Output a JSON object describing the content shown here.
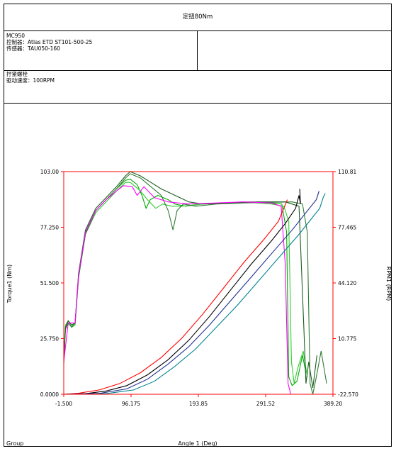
{
  "header": {
    "title": "定扭80Nm",
    "model": "MC950",
    "controller": "控制器：Atlas ETD ST101-500-25",
    "sensor": "传感器：TAU050-160",
    "operation": "拧紧螺栓",
    "speed": "驱动速度：100RPM"
  },
  "footer": {
    "group_label": "Group"
  },
  "colors": {
    "axis_red": "#ff0000",
    "series": [
      "#00aa00",
      "#33cc33",
      "#2e7d32",
      "#1b5e20",
      "#ff00ff",
      "#ff0000",
      "#000000",
      "#00838f",
      "#1f2f8f"
    ]
  },
  "chart_data": {
    "type": "line",
    "title": "",
    "xlabel": "Angle 1 (Deg)",
    "ylabel": "Torque1 (Nm)",
    "y2label": "RPM1 (RPM)",
    "xlim": [
      -1.5,
      389.2
    ],
    "ylim": [
      0,
      103
    ],
    "y2lim": [
      -22.57,
      110.81
    ],
    "xticks": [
      "-1.500",
      "96.175",
      "193.85",
      "291.52",
      "389.20"
    ],
    "yticks": [
      "0.0000",
      "25.750",
      "51.500",
      "77.250",
      "103.00"
    ],
    "y2ticks": [
      "-22.570",
      "10.775",
      "44.120",
      "77.465",
      "110.81"
    ],
    "grid": false,
    "series": [
      {
        "color": "#00aa00",
        "points": [
          [
            -1.5,
            15
          ],
          [
            1,
            31
          ],
          [
            5,
            33
          ],
          [
            10,
            31
          ],
          [
            15,
            33
          ],
          [
            20,
            55
          ],
          [
            30,
            75
          ],
          [
            45,
            85
          ],
          [
            60,
            90
          ],
          [
            75,
            95
          ],
          [
            88,
            99
          ],
          [
            95,
            99.5
          ],
          [
            105,
            97
          ],
          [
            112,
            92
          ],
          [
            118,
            86
          ],
          [
            124,
            90
          ],
          [
            135,
            92
          ],
          [
            150,
            90
          ],
          [
            160,
            88
          ],
          [
            175,
            87
          ],
          [
            200,
            88
          ],
          [
            230,
            88.5
          ],
          [
            270,
            89
          ],
          [
            300,
            88.5
          ],
          [
            315,
            88
          ],
          [
            322,
            75
          ],
          [
            325,
            8
          ],
          [
            330,
            4
          ],
          [
            337,
            6
          ],
          [
            345,
            18
          ],
          [
            350,
            10
          ]
        ]
      },
      {
        "color": "#33cc33",
        "points": [
          [
            -1.5,
            16
          ],
          [
            1,
            32
          ],
          [
            5,
            34
          ],
          [
            10,
            31
          ],
          [
            15,
            32
          ],
          [
            20,
            54
          ],
          [
            30,
            74
          ],
          [
            45,
            84
          ],
          [
            60,
            89
          ],
          [
            75,
            94
          ],
          [
            88,
            98
          ],
          [
            95,
            98
          ],
          [
            110,
            94
          ],
          [
            120,
            90
          ],
          [
            132,
            86
          ],
          [
            142,
            88
          ],
          [
            155,
            87
          ],
          [
            170,
            87
          ],
          [
            200,
            88
          ],
          [
            230,
            88.5
          ],
          [
            270,
            88.7
          ],
          [
            300,
            88
          ],
          [
            318,
            87
          ],
          [
            325,
            80
          ],
          [
            329,
            15
          ],
          [
            333,
            5
          ],
          [
            338,
            12
          ],
          [
            346,
            20
          ],
          [
            352,
            8
          ]
        ]
      },
      {
        "color": "#2e7d32",
        "points": [
          [
            -1.5,
            14
          ],
          [
            1,
            30
          ],
          [
            5,
            33
          ],
          [
            10,
            31
          ],
          [
            15,
            33
          ],
          [
            20,
            54
          ],
          [
            30,
            74
          ],
          [
            45,
            85
          ],
          [
            60,
            90
          ],
          [
            75,
            95
          ],
          [
            88,
            100
          ],
          [
            95,
            102
          ],
          [
            110,
            100
          ],
          [
            125,
            96
          ],
          [
            140,
            92
          ],
          [
            150,
            85
          ],
          [
            157,
            76
          ],
          [
            163,
            85
          ],
          [
            172,
            88
          ],
          [
            190,
            87
          ],
          [
            220,
            88
          ],
          [
            260,
            88.5
          ],
          [
            300,
            88.8
          ],
          [
            330,
            89
          ],
          [
            345,
            88
          ],
          [
            352,
            75
          ],
          [
            356,
            5
          ],
          [
            360,
            0
          ],
          [
            365,
            8
          ],
          [
            372,
            20
          ],
          [
            380,
            5
          ]
        ]
      },
      {
        "color": "#1b5e20",
        "points": [
          [
            -1.5,
            16
          ],
          [
            1,
            31
          ],
          [
            5,
            34
          ],
          [
            10,
            32
          ],
          [
            15,
            33
          ],
          [
            20,
            56
          ],
          [
            30,
            76
          ],
          [
            45,
            86
          ],
          [
            60,
            91
          ],
          [
            75,
            96
          ],
          [
            88,
            101
          ],
          [
            95,
            103
          ],
          [
            110,
            101
          ],
          [
            125,
            98
          ],
          [
            140,
            95
          ],
          [
            160,
            92
          ],
          [
            180,
            89
          ],
          [
            200,
            88
          ],
          [
            240,
            88.5
          ],
          [
            280,
            89
          ],
          [
            320,
            89
          ],
          [
            340,
            87
          ],
          [
            347,
            30
          ],
          [
            350,
            5
          ],
          [
            354,
            15
          ],
          [
            360,
            3
          ],
          [
            366,
            18
          ]
        ]
      },
      {
        "color": "#ff00ff",
        "points": [
          [
            -1.5,
            15
          ],
          [
            5,
            33
          ],
          [
            15,
            33
          ],
          [
            20,
            55
          ],
          [
            30,
            75
          ],
          [
            45,
            85
          ],
          [
            60,
            90
          ],
          [
            75,
            94
          ],
          [
            85,
            96.5
          ],
          [
            98,
            96
          ],
          [
            105,
            92
          ],
          [
            115,
            96
          ],
          [
            130,
            91
          ],
          [
            150,
            89
          ],
          [
            180,
            88
          ],
          [
            220,
            88.5
          ],
          [
            260,
            89
          ],
          [
            300,
            88.5
          ],
          [
            314,
            87
          ],
          [
            320,
            60
          ],
          [
            324,
            5
          ],
          [
            328,
            0
          ]
        ]
      },
      {
        "color": "#ff0000",
        "points": [
          [
            -1.5,
            0
          ],
          [
            20,
            0.5
          ],
          [
            50,
            2
          ],
          [
            80,
            5
          ],
          [
            110,
            10
          ],
          [
            140,
            17
          ],
          [
            170,
            26
          ],
          [
            200,
            37
          ],
          [
            230,
            49
          ],
          [
            260,
            61
          ],
          [
            290,
            72
          ],
          [
            310,
            80
          ],
          [
            323,
            90
          ]
        ]
      },
      {
        "color": "#000000",
        "points": [
          [
            -1.5,
            0
          ],
          [
            30,
            0.3
          ],
          [
            60,
            1.5
          ],
          [
            90,
            4
          ],
          [
            120,
            9
          ],
          [
            150,
            16
          ],
          [
            180,
            25
          ],
          [
            210,
            36
          ],
          [
            240,
            48
          ],
          [
            270,
            60
          ],
          [
            300,
            71
          ],
          [
            320,
            79
          ],
          [
            335,
            86
          ],
          [
            340,
            92
          ],
          [
            342,
            88
          ],
          [
            341,
            95
          ]
        ]
      },
      {
        "color": "#00838f",
        "points": [
          [
            -1.5,
            0
          ],
          [
            60,
            0.3
          ],
          [
            100,
            2
          ],
          [
            130,
            6
          ],
          [
            160,
            13
          ],
          [
            190,
            21
          ],
          [
            220,
            31
          ],
          [
            250,
            41
          ],
          [
            280,
            52
          ],
          [
            310,
            63
          ],
          [
            340,
            74
          ],
          [
            360,
            82
          ],
          [
            370,
            86
          ],
          [
            375,
            91
          ],
          [
            378,
            93
          ]
        ]
      },
      {
        "color": "#1f2f8f",
        "points": [
          [
            -1.5,
            0
          ],
          [
            50,
            0.4
          ],
          [
            90,
            2.5
          ],
          [
            120,
            7
          ],
          [
            150,
            14
          ],
          [
            180,
            22
          ],
          [
            210,
            32
          ],
          [
            240,
            43
          ],
          [
            270,
            54
          ],
          [
            300,
            65
          ],
          [
            330,
            76
          ],
          [
            355,
            86
          ],
          [
            365,
            90
          ],
          [
            369,
            94
          ],
          [
            368,
            93
          ]
        ]
      }
    ]
  }
}
